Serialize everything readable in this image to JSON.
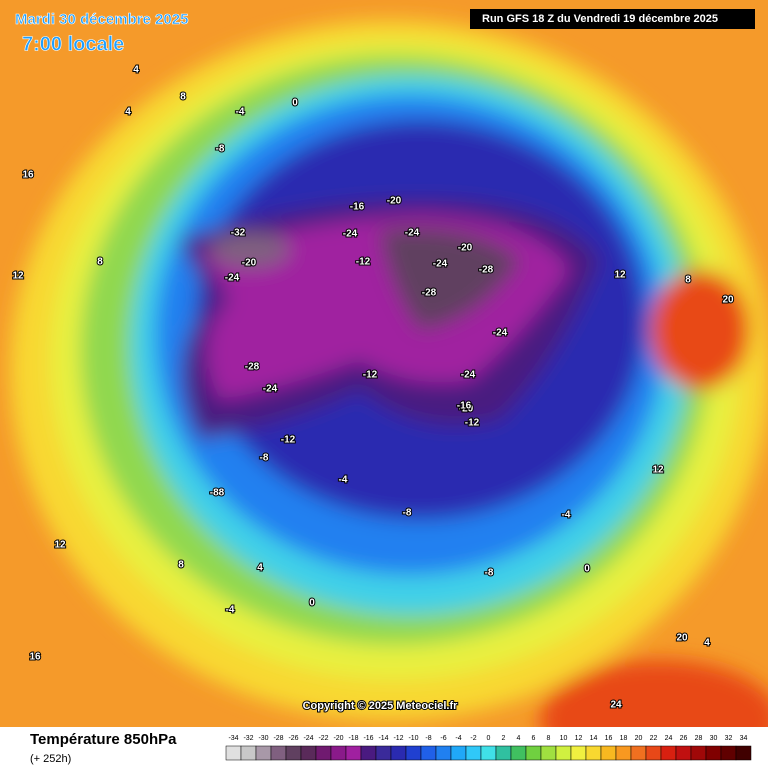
{
  "header": {
    "date": "Mardi 30 décembre 2025",
    "time": "7:00 locale",
    "run": "Run GFS 18 Z du Vendredi 19 décembre 2025"
  },
  "copyright": "Copyright © 2025 Meteociel.fr",
  "legend": {
    "title": "Température 850hPa",
    "lead": "(+ 252h)",
    "scale": {
      "values": [
        -34,
        -32,
        -30,
        -28,
        -26,
        -24,
        -22,
        -20,
        -18,
        -16,
        -14,
        -12,
        -10,
        -8,
        -6,
        -4,
        -2,
        0,
        2,
        4,
        6,
        8,
        10,
        12,
        14,
        16,
        18,
        20,
        22,
        24,
        26,
        28,
        30,
        32,
        34
      ],
      "colors": [
        "#e0e0e0",
        "#c8c8c8",
        "#a898a8",
        "#806080",
        "#604060",
        "#5a2a5a",
        "#701a70",
        "#8a1a8a",
        "#a020a0",
        "#4a1a80",
        "#3a2a9a",
        "#2a2ab0",
        "#2040d0",
        "#2060e8",
        "#2080f0",
        "#20a8f8",
        "#30c8f8",
        "#40e0e8",
        "#30c0a0",
        "#40c060",
        "#70d040",
        "#a0e040",
        "#d0f040",
        "#f0f040",
        "#f8d830",
        "#f8b820",
        "#f89820",
        "#f07020",
        "#e84818",
        "#d82010",
        "#c01010",
        "#a00808",
        "#800000",
        "#600000",
        "#400000"
      ]
    }
  },
  "map": {
    "labels": [
      16,
      12,
      8,
      4,
      4,
      8,
      -8,
      -4,
      0,
      -16,
      -20,
      -24,
      -32,
      -24,
      -20,
      -12,
      -24,
      -24,
      -28,
      -20,
      -24,
      -28,
      -24,
      -12,
      -28,
      -24,
      -20,
      -16,
      -12,
      -4,
      -8,
      -12,
      -8,
      -4,
      0,
      -8,
      -4,
      0,
      4,
      8,
      12,
      16,
      20,
      24,
      20,
      12,
      8,
      -88,
      12,
      4
    ]
  }
}
